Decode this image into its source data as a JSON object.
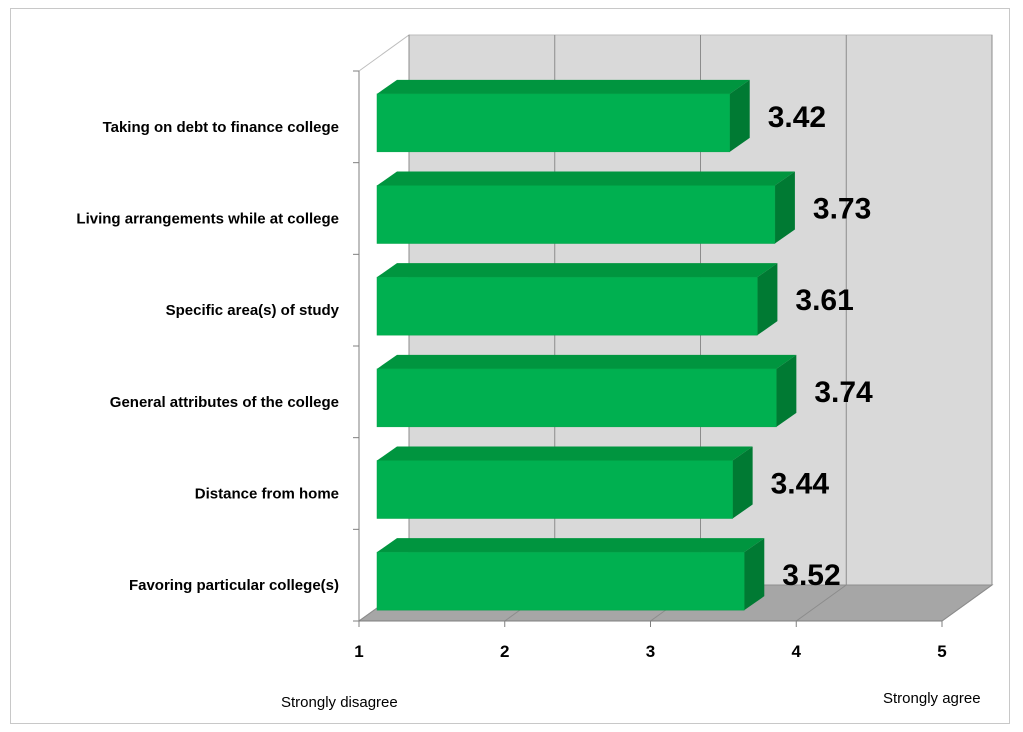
{
  "chart_data": {
    "type": "bar",
    "orientation": "horizontal",
    "three_d": true,
    "categories": [
      "Taking on debt to finance college",
      "Living arrangements while at college",
      "Specific area(s) of study",
      "General attributes of the college",
      "Distance from home",
      "Favoring particular college(s)"
    ],
    "values": [
      3.42,
      3.73,
      3.61,
      3.74,
      3.44,
      3.52
    ],
    "value_labels": [
      "3.42",
      "3.73",
      "3.61",
      "3.74",
      "3.44",
      "3.52"
    ],
    "xlim": [
      1,
      5
    ],
    "x_ticks": [
      "1",
      "2",
      "3",
      "4",
      "5"
    ],
    "scale_anchor_left": "Strongly disagree",
    "scale_anchor_right": "Strongly agree",
    "grid": true,
    "legend": "none",
    "colors": {
      "bar_front": "#00b050",
      "bar_top": "#00953f",
      "bar_side": "#007a33",
      "wall": "#d9d9d9",
      "floor": "#a6a6a6",
      "gridline": "#8c8c8c"
    }
  }
}
